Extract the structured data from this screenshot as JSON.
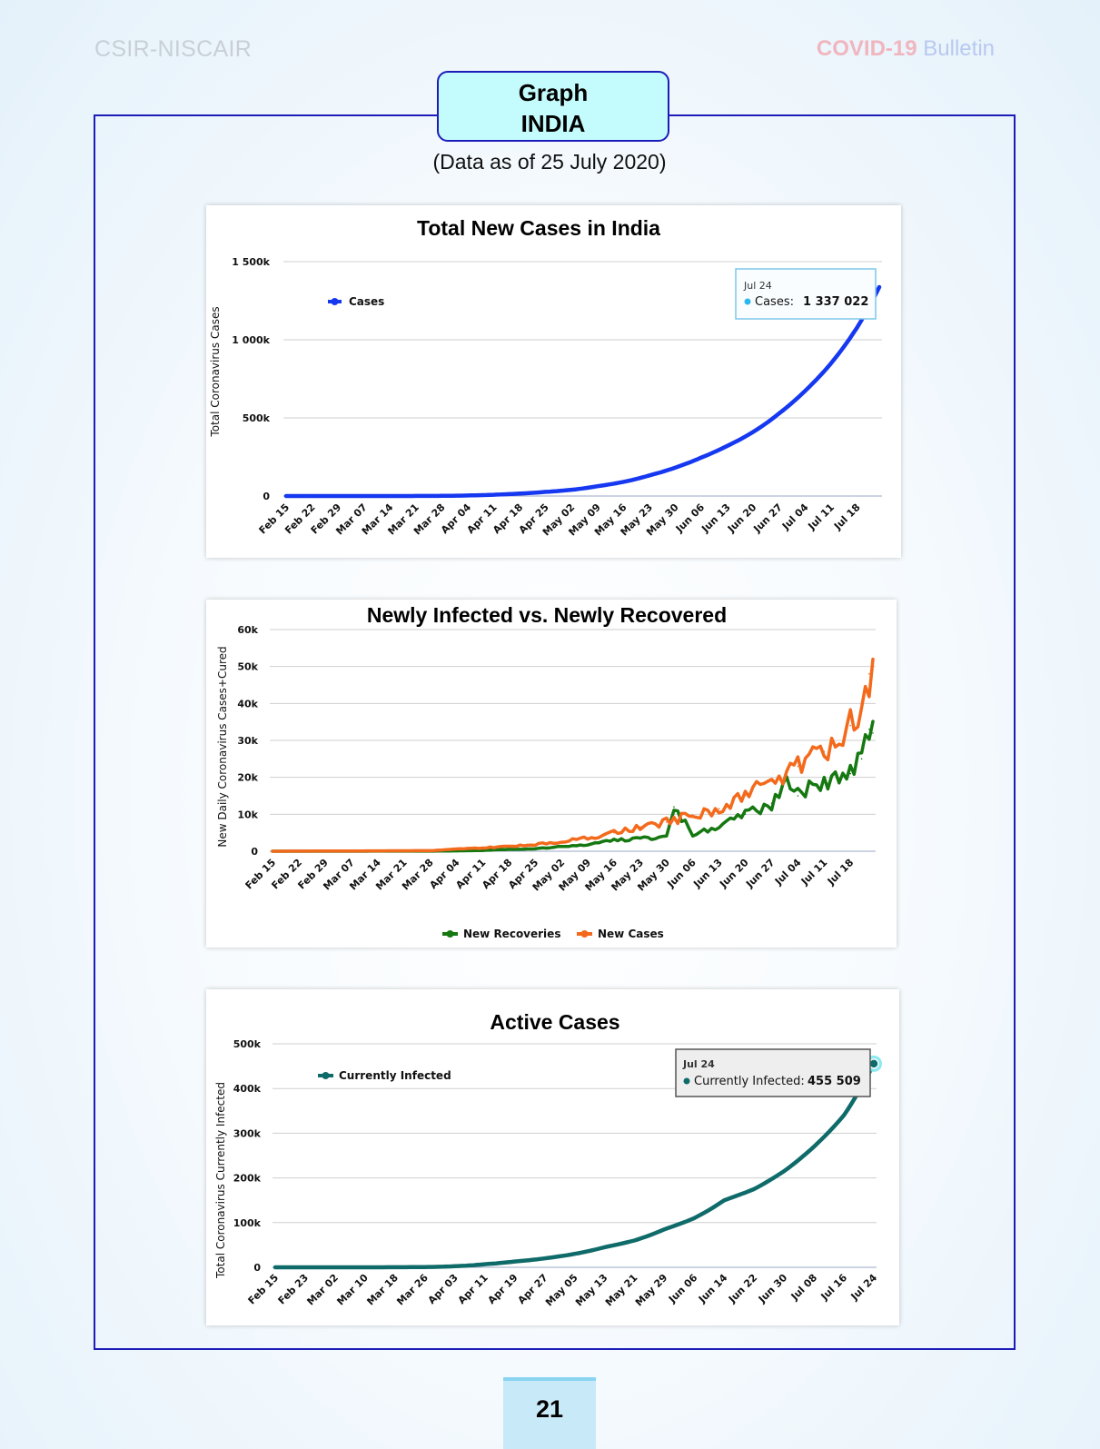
{
  "header": {
    "left": "CSIR-NISCAIR",
    "covid": "COVID-19",
    "bulletin": "Bulletin"
  },
  "box": {
    "line1": "Graph",
    "line2": "INDIA"
  },
  "subtitle": "(Data as of 25 July 2020)",
  "page_number": "21",
  "colors": {
    "cases": "#1538f0",
    "recoveries": "#157810",
    "new_cases": "#f36a1c",
    "active": "#0f6b69",
    "frame": "#1c1cb8"
  },
  "chart_data": [
    {
      "type": "line",
      "title": "Total New Cases in India",
      "ylabel": "Total Coronavirus Cases",
      "xlabel": "",
      "x_ticks": [
        "Feb 15",
        "Feb 22",
        "Feb 29",
        "Mar 07",
        "Mar 14",
        "Mar 21",
        "Mar 28",
        "Apr 04",
        "Apr 11",
        "Apr 18",
        "Apr 25",
        "May 02",
        "May 09",
        "May 16",
        "May 23",
        "May 30",
        "Jun 06",
        "Jun 13",
        "Jun 20",
        "Jun 27",
        "Jul 04",
        "Jul 11",
        "Jul 18"
      ],
      "y_ticks": [
        "0",
        "500k",
        "1 000k",
        "1 500k"
      ],
      "ylim": [
        0,
        1500000
      ],
      "grid": true,
      "legend": "top-left",
      "series": [
        {
          "name": "Cases",
          "x": [
            "Feb 15",
            "Mar 07",
            "Mar 28",
            "Apr 04",
            "Apr 11",
            "Apr 18",
            "Apr 25",
            "May 02",
            "May 09",
            "May 16",
            "May 23",
            "May 30",
            "Jun 06",
            "Jun 13",
            "Jun 20",
            "Jun 27",
            "Jul 04",
            "Jul 11",
            "Jul 18",
            "Jul 24"
          ],
          "values": [
            3,
            34,
            1000,
            3600,
            8400,
            15700,
            26500,
            39900,
            62900,
            90600,
            131900,
            182100,
            246600,
            320900,
            410500,
            528900,
            673200,
            849600,
            1077600,
            1337022
          ]
        }
      ],
      "tooltip": {
        "date": "Jul 24",
        "label": "Cases:",
        "value": "1 337 022"
      }
    },
    {
      "type": "line",
      "title": "Newly Infected vs. Newly Recovered",
      "ylabel": "New Daily Coronavirus Cases+Cured",
      "xlabel": "",
      "x_ticks": [
        "Feb 15",
        "Feb 22",
        "Feb 29",
        "Mar 07",
        "Mar 14",
        "Mar 21",
        "Mar 28",
        "Apr 04",
        "Apr 11",
        "Apr 18",
        "Apr 25",
        "May 02",
        "May 09",
        "May 16",
        "May 23",
        "May 30",
        "Jun 06",
        "Jun 13",
        "Jun 20",
        "Jun 27",
        "Jul 04",
        "Jul 11",
        "Jul 18"
      ],
      "y_ticks": [
        "0",
        "10k",
        "20k",
        "30k",
        "40k",
        "50k",
        "60k"
      ],
      "ylim": [
        0,
        60000
      ],
      "grid": true,
      "legend": "bottom-center",
      "series": [
        {
          "name": "New Recoveries",
          "x": [
            "Feb 15",
            "Mar 28",
            "Apr 04",
            "Apr 11",
            "Apr 18",
            "Apr 25",
            "May 02",
            "May 09",
            "May 16",
            "May 23",
            "May 30",
            "Jun 01",
            "Jun 06",
            "Jun 13",
            "Jun 20",
            "Jun 27",
            "Jul 01",
            "Jul 04",
            "Jul 11",
            "Jul 18",
            "Jul 21",
            "Jul 23",
            "Jul 24"
          ],
          "values": [
            0,
            20,
            100,
            200,
            500,
            700,
            1200,
            1800,
            3000,
            3300,
            4000,
            12000,
            4500,
            6500,
            10000,
            13000,
            20000,
            15000,
            19000,
            21000,
            25000,
            33000,
            32000
          ]
        },
        {
          "name": "New Cases",
          "x": [
            "Feb 15",
            "Mar 28",
            "Apr 04",
            "Apr 11",
            "Apr 18",
            "Apr 25",
            "May 02",
            "May 09",
            "May 16",
            "May 23",
            "May 30",
            "Jun 06",
            "Jun 13",
            "Jun 20",
            "Jun 27",
            "Jul 04",
            "Jul 11",
            "Jul 18",
            "Jul 21",
            "Jul 23",
            "Jul 24"
          ],
          "values": [
            0,
            150,
            600,
            900,
            1300,
            1800,
            2600,
            3600,
            5000,
            6600,
            7900,
            9800,
            11500,
            15000,
            19000,
            23000,
            27000,
            34000,
            40000,
            48000,
            49000
          ]
        }
      ]
    },
    {
      "type": "line",
      "title": "Active Cases",
      "ylabel": "Total Coronavirus Currently Infected",
      "xlabel": "",
      "x_ticks": [
        "Feb 15",
        "Feb 23",
        "Mar 02",
        "Mar 10",
        "Mar 18",
        "Mar 26",
        "Apr 03",
        "Apr 11",
        "Apr 19",
        "Apr 27",
        "May 05",
        "May 13",
        "May 21",
        "May 29",
        "Jun 06",
        "Jun 14",
        "Jun 22",
        "Jun 30",
        "Jul 08",
        "Jul 16",
        "Jul 24"
      ],
      "y_ticks": [
        "0",
        "100k",
        "200k",
        "300k",
        "400k",
        "500k"
      ],
      "ylim": [
        0,
        500000
      ],
      "grid": true,
      "legend": "top-left",
      "series": [
        {
          "name": "Currently Infected",
          "x": [
            "Feb 15",
            "Mar 10",
            "Mar 26",
            "Apr 03",
            "Apr 11",
            "Apr 19",
            "Apr 27",
            "May 05",
            "May 13",
            "May 21",
            "May 29",
            "Jun 06",
            "Jun 14",
            "Jun 22",
            "Jun 30",
            "Jul 08",
            "Jul 16",
            "Jul 24"
          ],
          "values": [
            3,
            40,
            600,
            2500,
            7000,
            13000,
            20000,
            30000,
            45000,
            60000,
            85000,
            110000,
            150000,
            175000,
            215000,
            270000,
            340000,
            455509
          ]
        }
      ],
      "tooltip": {
        "date": "Jul 24",
        "label": "Currently Infected:",
        "value": "455 509"
      }
    }
  ]
}
